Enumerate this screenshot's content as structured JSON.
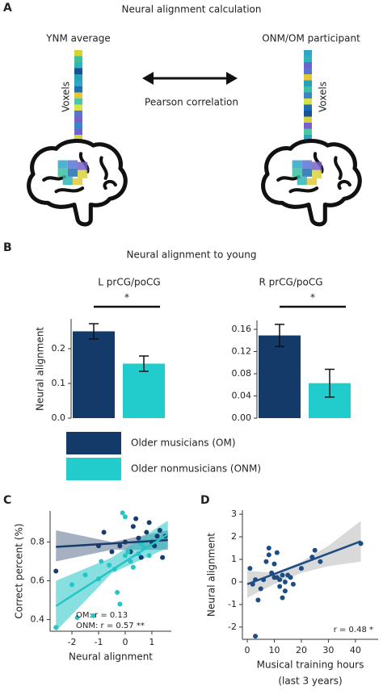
{
  "figure": {
    "panel_labels": [
      "A",
      "B",
      "C",
      "D"
    ],
    "panel_b_title": "Neural alignment to young"
  },
  "diagram": {
    "title": "Neural alignment calculation",
    "left_label": "YNM average",
    "right_label": "ONM/OM participant",
    "axis_label": "Voxels",
    "arrow_label": "Pearson correlation"
  },
  "chart_data": [
    {
      "type": "bar",
      "title": "L prCG/poCG",
      "y_label": "Neural alignment",
      "categories": [
        null
      ],
      "series": [
        {
          "name": "Older musicians (OM)",
          "color": "#133a68",
          "values": [
            0.25
          ],
          "errors": [
            0.022
          ]
        },
        {
          "name": "Older nonmusicians (ONM)",
          "color": "#22cccc",
          "values": [
            0.157
          ],
          "errors": [
            0.022
          ]
        }
      ],
      "significance": "*",
      "ylim": [
        0,
        0.286
      ],
      "yticks": [
        {
          "value": 0,
          "label": "0.0"
        },
        0.1,
        0.2
      ]
    },
    {
      "type": "bar",
      "title": "R prCG/poCG",
      "categories": [
        null
      ],
      "series": [
        {
          "color": "#133a68",
          "values": [
            0.149
          ],
          "errors": [
            0.02
          ]
        },
        {
          "color": "#22cccc",
          "values": [
            0.063
          ],
          "errors": [
            0.025
          ]
        }
      ],
      "significance": "*",
      "ylim": [
        0,
        0.176
      ],
      "yticks": [
        {
          "value": 0,
          "label": "0.00"
        },
        0.04,
        0.08,
        0.12,
        0.16
      ]
    },
    {
      "type": "scatter",
      "x_label": [
        "Neural alignment"
      ],
      "y_label": "Correct percent (%)",
      "xlim": [
        -2.82,
        1.73
      ],
      "xticks": [
        -2,
        -1,
        0,
        1
      ],
      "ylim": [
        0.34,
        0.96
      ],
      "yticks": [
        0.4,
        0.6,
        0.8
      ],
      "series": [
        {
          "name": "OM",
          "color": "#173d6e",
          "x": [
            -2.6,
            -1.0,
            -0.5,
            -0.2,
            0.0,
            0.2,
            0.3,
            0.5,
            0.6,
            0.8,
            0.9,
            1.0,
            1.1,
            1.2,
            1.3,
            1.4,
            1.5,
            -0.8,
            0.4
          ],
          "values": [
            0.65,
            0.78,
            0.75,
            0.78,
            0.8,
            0.75,
            0.88,
            0.82,
            0.72,
            0.85,
            0.9,
            0.8,
            0.78,
            0.83,
            0.86,
            0.72,
            0.83,
            0.85,
            0.92
          ],
          "trend": {
            "x": [
              -2.6,
              1.6
            ],
            "y": [
              0.775,
              0.81
            ]
          },
          "band": {
            "x": [
              -2.6,
              -0.5,
              1.6
            ],
            "lower": [
              0.7,
              0.76,
              0.76
            ],
            "upper": [
              0.86,
              0.8,
              0.86
            ]
          }
        },
        {
          "name": "ONM",
          "color": "#25c4c6",
          "x": [
            -2.6,
            -2.0,
            -1.8,
            -1.5,
            -1.2,
            -1.0,
            -0.9,
            -0.6,
            -0.4,
            -0.3,
            -0.2,
            0.0,
            0.1,
            0.2,
            0.3,
            0.5,
            0.6,
            0.7,
            0.9,
            -0.1,
            0.0
          ],
          "values": [
            0.36,
            0.58,
            0.41,
            0.63,
            0.42,
            0.61,
            0.7,
            0.68,
            0.66,
            0.54,
            0.48,
            0.73,
            0.75,
            0.7,
            0.67,
            0.74,
            0.79,
            0.77,
            0.73,
            0.95,
            0.93
          ],
          "trend": {
            "x": [
              -2.6,
              1.6
            ],
            "y": [
              0.47,
              0.84
            ]
          },
          "band": {
            "x": [
              -2.6,
              -0.5,
              1.6
            ],
            "lower": [
              0.34,
              0.64,
              0.77
            ],
            "upper": [
              0.6,
              0.72,
              0.91
            ]
          }
        }
      ],
      "annotations": [
        {
          "text": "OM: r = 0.13",
          "color": "#173d6e"
        },
        {
          "text": "ONM: r = 0.57 **",
          "color": "#25c4c6"
        }
      ]
    },
    {
      "type": "scatter",
      "x_label": [
        "Musical training hours",
        "(last 3 years)"
      ],
      "y_label": "Neural alignment",
      "xlim": [
        -1.8,
        48.4
      ],
      "xticks": [
        0,
        10,
        20,
        30,
        40
      ],
      "ylim": [
        -2.54,
        3.18
      ],
      "yticks": [
        -2,
        -1,
        0,
        1,
        2,
        3
      ],
      "series": [
        {
          "color": "#1d4d85",
          "x": [
            1,
            2,
            3,
            3,
            4,
            5,
            6,
            7,
            8,
            8,
            9,
            10,
            10,
            11,
            11,
            12,
            12,
            13,
            13,
            14,
            14,
            15,
            16,
            17,
            20,
            24,
            25,
            27,
            42
          ],
          "values": [
            0.6,
            -0.1,
            0.1,
            -2.4,
            -0.8,
            -0.3,
            0.1,
            0.9,
            1.5,
            1.2,
            0.4,
            0.2,
            0.8,
            0.2,
            1.3,
            0.1,
            -0.2,
            0.3,
            -0.7,
            0.0,
            -0.4,
            0.3,
            0.2,
            -0.1,
            0.6,
            1.1,
            1.4,
            0.9,
            1.7
          ],
          "trend": {
            "x": [
              0,
              42
            ],
            "y": [
              -0.1,
              1.8
            ]
          },
          "band": {
            "x": [
              0,
              10,
              20,
              30,
              42
            ],
            "lower": [
              -0.7,
              -0.1,
              0.4,
              0.7,
              0.9
            ],
            "upper": [
              0.5,
              0.4,
              0.9,
              1.6,
              2.7
            ]
          }
        }
      ],
      "annotations": [
        {
          "text": "r = 0.48 *",
          "color": "#1d4d85"
        }
      ]
    }
  ]
}
